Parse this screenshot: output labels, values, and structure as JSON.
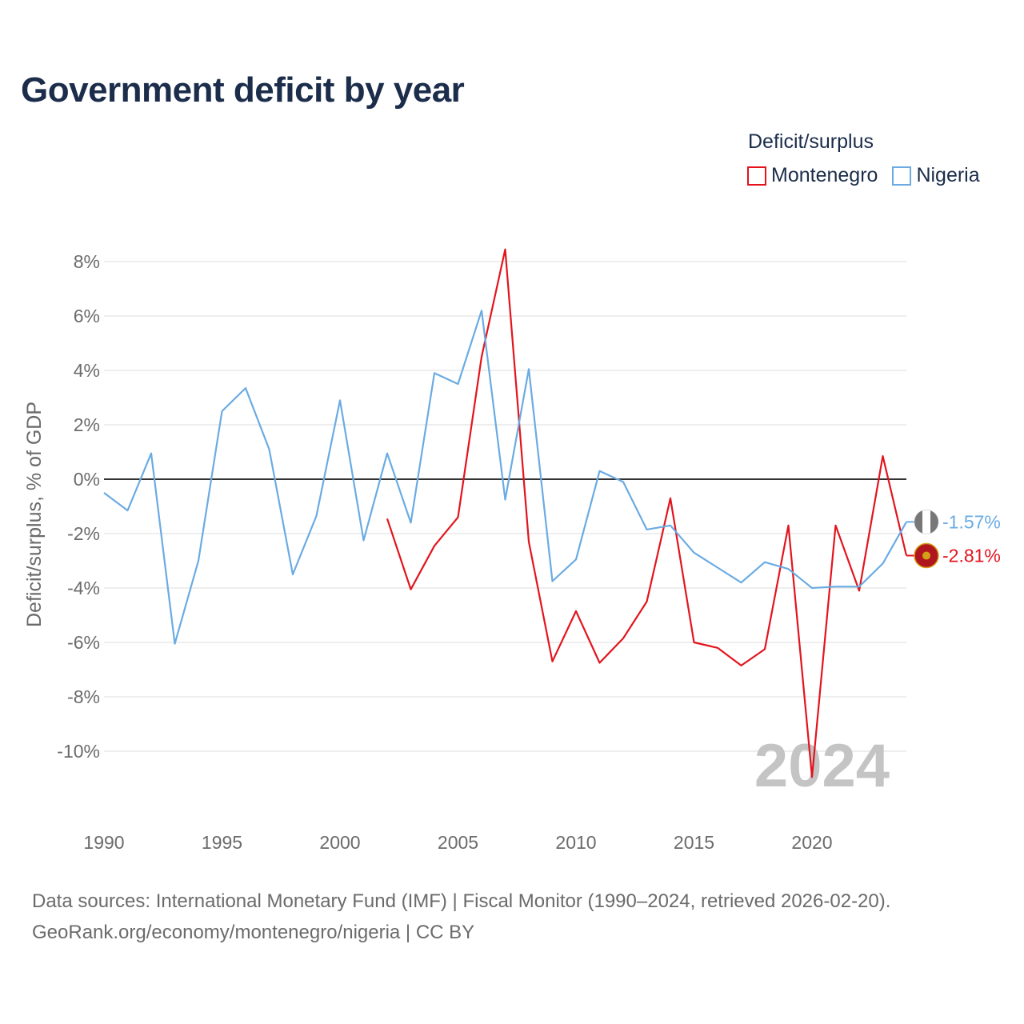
{
  "title": "Government deficit by year",
  "legend": {
    "title": "Deficit/surplus",
    "items": [
      {
        "label": "Montenegro",
        "color": "#e3141d"
      },
      {
        "label": "Nigeria",
        "color": "#6aabe3"
      }
    ]
  },
  "source": {
    "line1": "Data sources: International Monetary Fund (IMF) | Fiscal Monitor (1990–2024, retrieved 2026-02-20).",
    "line2": "GeoRank.org/economy/montenegro/nigeria | CC BY"
  },
  "chart_data": {
    "type": "line",
    "title": "Government deficit by year",
    "xlabel": "",
    "ylabel": "Deficit/surplus, % of GDP",
    "xlim": [
      1990,
      2024
    ],
    "ylim": [
      -12,
      9
    ],
    "y_ticks": [
      8,
      6,
      4,
      2,
      0,
      -2,
      -4,
      -6,
      -8,
      -10
    ],
    "y_tick_labels": [
      "8%",
      "6%",
      "4%",
      "2%",
      "0%",
      "-2%",
      "-4%",
      "-6%",
      "-8%",
      "-10%"
    ],
    "x_ticks": [
      1990,
      1995,
      2000,
      2005,
      2010,
      2015,
      2020
    ],
    "x_tick_labels": [
      "1990",
      "1995",
      "2000",
      "2005",
      "2010",
      "2015",
      "2020"
    ],
    "watermark_year": "2024",
    "series": [
      {
        "name": "Montenegro",
        "color": "#e3141d",
        "end_label": "-2.81%",
        "points": [
          [
            2002,
            -1.45
          ],
          [
            2003,
            -4.05
          ],
          [
            2004,
            -2.45
          ],
          [
            2005,
            -1.4
          ],
          [
            2006,
            4.5
          ],
          [
            2007,
            8.45
          ],
          [
            2008,
            -2.3
          ],
          [
            2009,
            -6.7
          ],
          [
            2010,
            -4.85
          ],
          [
            2011,
            -6.75
          ],
          [
            2012,
            -5.85
          ],
          [
            2013,
            -4.5
          ],
          [
            2014,
            -0.7
          ],
          [
            2015,
            -6.0
          ],
          [
            2016,
            -6.2
          ],
          [
            2017,
            -6.85
          ],
          [
            2018,
            -6.25
          ],
          [
            2019,
            -1.7
          ],
          [
            2020,
            -10.95
          ],
          [
            2021,
            -1.7
          ],
          [
            2022,
            -4.1
          ],
          [
            2023,
            0.85
          ],
          [
            2024,
            -2.81
          ]
        ]
      },
      {
        "name": "Nigeria",
        "color": "#6aabe3",
        "end_label": "-1.57%",
        "points": [
          [
            1990,
            -0.5
          ],
          [
            1991,
            -1.15
          ],
          [
            1992,
            0.95
          ],
          [
            1993,
            -6.05
          ],
          [
            1994,
            -3.0
          ],
          [
            1995,
            2.5
          ],
          [
            1996,
            3.35
          ],
          [
            1997,
            1.1
          ],
          [
            1998,
            -3.5
          ],
          [
            1999,
            -1.35
          ],
          [
            2000,
            2.9
          ],
          [
            2001,
            -2.25
          ],
          [
            2002,
            0.95
          ],
          [
            2003,
            -1.6
          ],
          [
            2004,
            3.9
          ],
          [
            2005,
            3.5
          ],
          [
            2006,
            6.2
          ],
          [
            2007,
            -0.75
          ],
          [
            2008,
            4.05
          ],
          [
            2009,
            -3.75
          ],
          [
            2010,
            -2.95
          ],
          [
            2011,
            0.3
          ],
          [
            2012,
            -0.1
          ],
          [
            2013,
            -1.85
          ],
          [
            2014,
            -1.7
          ],
          [
            2015,
            -2.7
          ],
          [
            2016,
            -3.25
          ],
          [
            2017,
            -3.8
          ],
          [
            2018,
            -3.05
          ],
          [
            2019,
            -3.3
          ],
          [
            2020,
            -4.0
          ],
          [
            2021,
            -3.95
          ],
          [
            2022,
            -3.95
          ],
          [
            2023,
            -3.1
          ],
          [
            2024,
            -1.57
          ]
        ]
      }
    ]
  }
}
